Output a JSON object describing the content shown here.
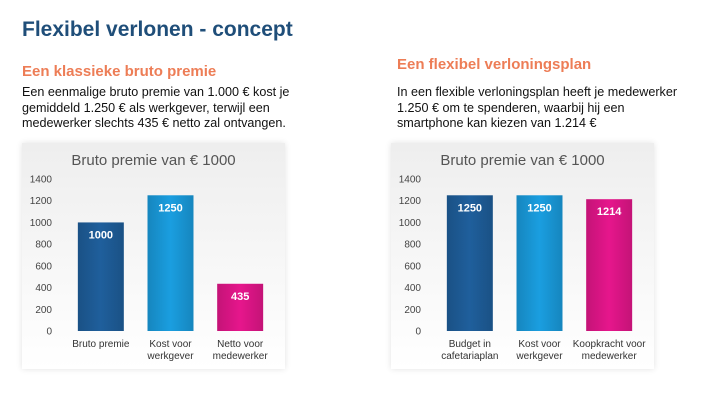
{
  "slide": {
    "title": "Flexibel verlonen - concept",
    "left": {
      "subtitle": "Een klassieke bruto premie",
      "text": "Een eenmalige bruto premie van 1.000 € kost je\ngemiddeld 1.250 € als werkgever, terwijl een\nmedewerker slechts 435 € netto zal ontvangen."
    },
    "right": {
      "subtitle": "Een flexibel verloningsplan",
      "text": "In een flexible verloningsplan heeft je medewerker\n1.250 € om te spenderen, waarbij hij een\nsmartphone kan kiezen van 1.214 €"
    }
  },
  "colors": {
    "title": "#1f4e79",
    "subtitle": "#ed7d56",
    "dark_blue": "#1f5f9c",
    "light_blue": "#1a9ee0",
    "magenta": "#e6168c"
  },
  "chart_data": [
    {
      "type": "bar",
      "title": "Bruto premie van € 1000",
      "categories": [
        [
          "Bruto premie"
        ],
        [
          "Kost voor",
          "werkgever"
        ],
        [
          "Netto voor",
          "medewerker"
        ]
      ],
      "values": [
        1000,
        1250,
        435
      ],
      "labels": [
        "1000",
        "1250",
        "435"
      ],
      "bar_colors": [
        "#1f5f9c",
        "#1a9ee0",
        "#e6168c"
      ],
      "ylim": [
        0,
        1400
      ],
      "yticks": [
        0,
        200,
        400,
        600,
        800,
        1000,
        1200,
        1400
      ],
      "xlabel": "",
      "ylabel": "",
      "grid": false,
      "legend": "none"
    },
    {
      "type": "bar",
      "title": "Bruto premie van € 1000",
      "categories": [
        [
          "Budget in",
          "cafetariaplan"
        ],
        [
          "Kost voor",
          "werkgever"
        ],
        [
          "Koopkracht voor",
          "medewerker"
        ]
      ],
      "values": [
        1250,
        1250,
        1214
      ],
      "labels": [
        "1250",
        "1250",
        "1214"
      ],
      "bar_colors": [
        "#1f5f9c",
        "#1a9ee0",
        "#e6168c"
      ],
      "ylim": [
        0,
        1400
      ],
      "yticks": [
        0,
        200,
        400,
        600,
        800,
        1000,
        1200,
        1400
      ],
      "xlabel": "",
      "ylabel": "",
      "grid": false,
      "legend": "none"
    }
  ]
}
